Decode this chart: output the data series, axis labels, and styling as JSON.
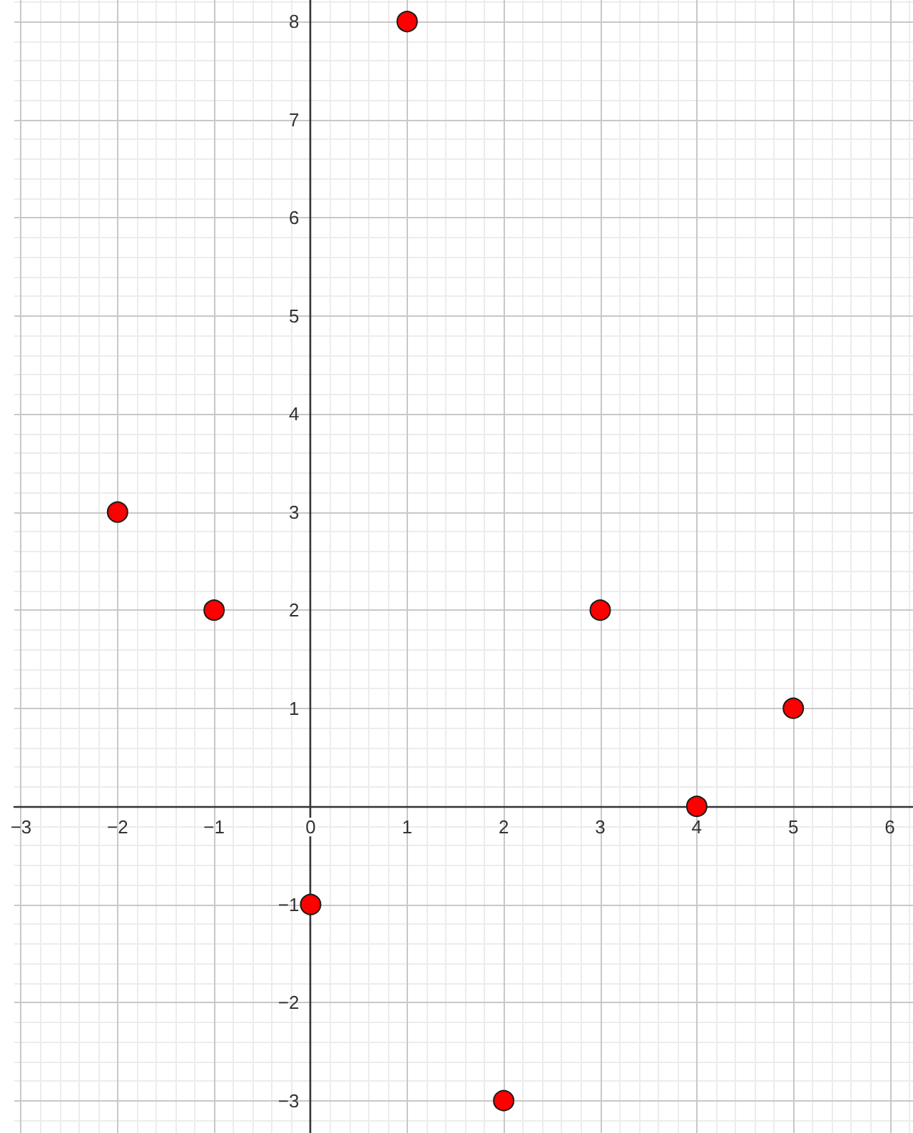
{
  "chart_data": {
    "type": "scatter",
    "x": [
      -2,
      -1,
      0,
      1,
      2,
      3,
      4,
      5
    ],
    "values": [
      3,
      2,
      -1,
      8,
      -3,
      2,
      0,
      1
    ],
    "color": "#ff0000",
    "marker": "circle",
    "xlim": [
      -3.07,
      6.24
    ],
    "ylim": [
      -3.33,
      8.22
    ],
    "xticks": [
      {
        "value": -3,
        "label": "−3"
      },
      {
        "value": -2,
        "label": "−2"
      },
      {
        "value": -1,
        "label": "−1"
      },
      0,
      1,
      2,
      3,
      4,
      5,
      6
    ],
    "yticks": [
      {
        "value": -3,
        "label": "−3"
      },
      {
        "value": -2,
        "label": "−2"
      },
      {
        "value": -1,
        "label": "−1"
      },
      1,
      2,
      3,
      4,
      5,
      6,
      7,
      8
    ],
    "grid": true
  }
}
